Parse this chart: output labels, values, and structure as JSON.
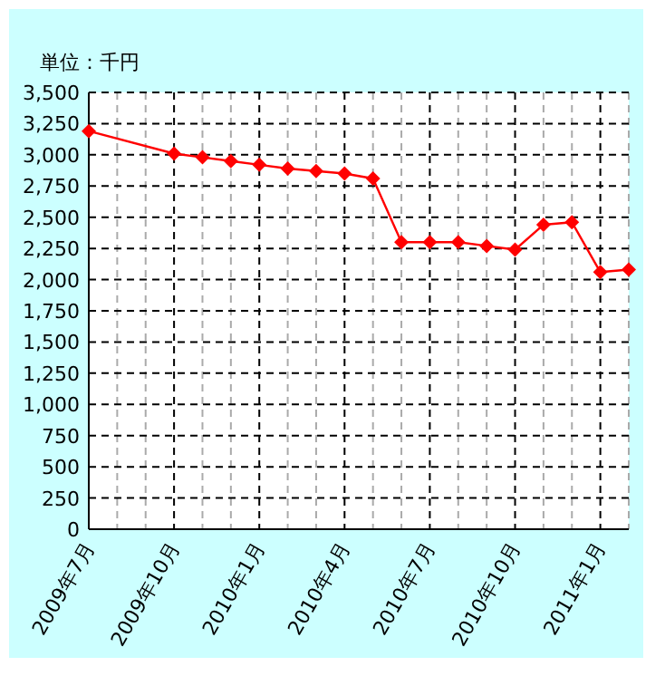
{
  "chart_data": {
    "type": "line",
    "ylabel": "単位：千円",
    "x": [
      "2009-07",
      "2009-10",
      "2009-11",
      "2009-12",
      "2010-01",
      "2010-02",
      "2010-03",
      "2010-04",
      "2010-05",
      "2010-06",
      "2010-07",
      "2010-08",
      "2010-09",
      "2010-10",
      "2010-11",
      "2010-12",
      "2011-01",
      "2011-02"
    ],
    "series": [
      {
        "color": "#ff0000",
        "values": [
          3190,
          3010,
          2980,
          2950,
          2920,
          2890,
          2870,
          2850,
          2810,
          2300,
          2300,
          2300,
          2270,
          2240,
          2440,
          2460,
          2060,
          2080
        ]
      }
    ],
    "xlim": [
      "2009-07",
      "2011-02"
    ],
    "xticks": [
      {
        "value": "2009-07",
        "label": "2009年7月"
      },
      {
        "value": "2009-10",
        "label": "2009年10月"
      },
      {
        "value": "2010-01",
        "label": "2010年1月"
      },
      {
        "value": "2010-04",
        "label": "2010年4月"
      },
      {
        "value": "2010-07",
        "label": "2010年7月"
      },
      {
        "value": "2010-10",
        "label": "2010年10月"
      },
      {
        "value": "2011-01",
        "label": "2011年1月"
      }
    ],
    "ylim": [
      0,
      3500
    ],
    "yticks": [
      {
        "value": 0,
        "label": "0"
      },
      {
        "value": 250,
        "label": "250"
      },
      {
        "value": 500,
        "label": "500"
      },
      {
        "value": 750,
        "label": "750"
      },
      {
        "value": 1000,
        "label": "1,000"
      },
      {
        "value": 1250,
        "label": "1,250"
      },
      {
        "value": 1500,
        "label": "1,500"
      },
      {
        "value": 1750,
        "label": "1,750"
      },
      {
        "value": 2000,
        "label": "2,000"
      },
      {
        "value": 2250,
        "label": "2,250"
      },
      {
        "value": 2500,
        "label": "2,500"
      },
      {
        "value": 2750,
        "label": "2,750"
      },
      {
        "value": 3000,
        "label": "3,000"
      },
      {
        "value": 3250,
        "label": "3,250"
      },
      {
        "value": 3500,
        "label": "3,500"
      }
    ],
    "grid": true,
    "marker": "diamond",
    "line_style": "solid"
  }
}
